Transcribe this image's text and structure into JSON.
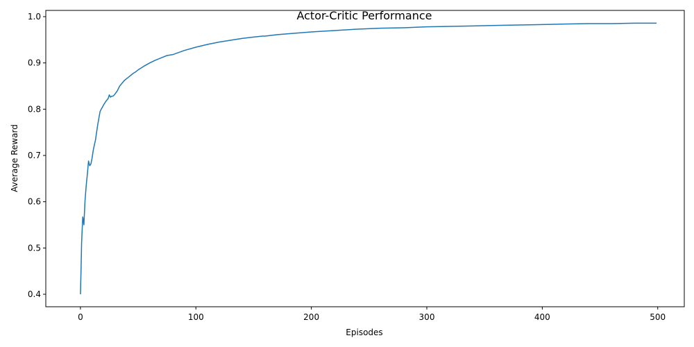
{
  "chart_data": {
    "type": "line",
    "title": "Actor-Critic Performance",
    "xlabel": "Episodes",
    "ylabel": "Average Reward",
    "xlim": [
      -30,
      523
    ],
    "ylim": [
      0.373,
      1.0135
    ],
    "xticks": [
      0,
      100,
      200,
      300,
      400,
      500
    ],
    "yticks": [
      0.4,
      0.5,
      0.6,
      0.7,
      0.8,
      0.9,
      1.0
    ],
    "grid": false,
    "legend": "none",
    "series": [
      {
        "color": "#1f77b4",
        "x": [
          0,
          0.5,
          1,
          1.5,
          2,
          2.5,
          3,
          3.5,
          4,
          5,
          6,
          7,
          8,
          9,
          10,
          11,
          12,
          13,
          14,
          15,
          16,
          17,
          18,
          20,
          22,
          24,
          25,
          26,
          27,
          28,
          29,
          30,
          32,
          34,
          36,
          38,
          40,
          42,
          44,
          46,
          48,
          50,
          55,
          60,
          65,
          70,
          75,
          80,
          90,
          100,
          110,
          120,
          130,
          140,
          150,
          158,
          160,
          170,
          180,
          200,
          220,
          240,
          260,
          280,
          300,
          320,
          340,
          360,
          380,
          400,
          420,
          440,
          460,
          480,
          499
        ],
        "y": [
          0.4,
          0.45,
          0.51,
          0.54,
          0.567,
          0.56,
          0.55,
          0.578,
          0.603,
          0.635,
          0.66,
          0.688,
          0.678,
          0.681,
          0.693,
          0.71,
          0.722,
          0.733,
          0.75,
          0.767,
          0.781,
          0.795,
          0.8,
          0.809,
          0.817,
          0.823,
          0.831,
          0.826,
          0.828,
          0.828,
          0.83,
          0.833,
          0.84,
          0.85,
          0.856,
          0.862,
          0.866,
          0.87,
          0.874,
          0.878,
          0.881,
          0.885,
          0.893,
          0.9,
          0.906,
          0.911,
          0.916,
          0.918,
          0.927,
          0.934,
          0.94,
          0.945,
          0.949,
          0.953,
          0.956,
          0.958,
          0.958,
          0.961,
          0.963,
          0.967,
          0.97,
          0.973,
          0.975,
          0.976,
          0.978,
          0.979,
          0.98,
          0.981,
          0.982,
          0.983,
          0.984,
          0.985,
          0.985,
          0.986,
          0.986
        ]
      }
    ]
  }
}
